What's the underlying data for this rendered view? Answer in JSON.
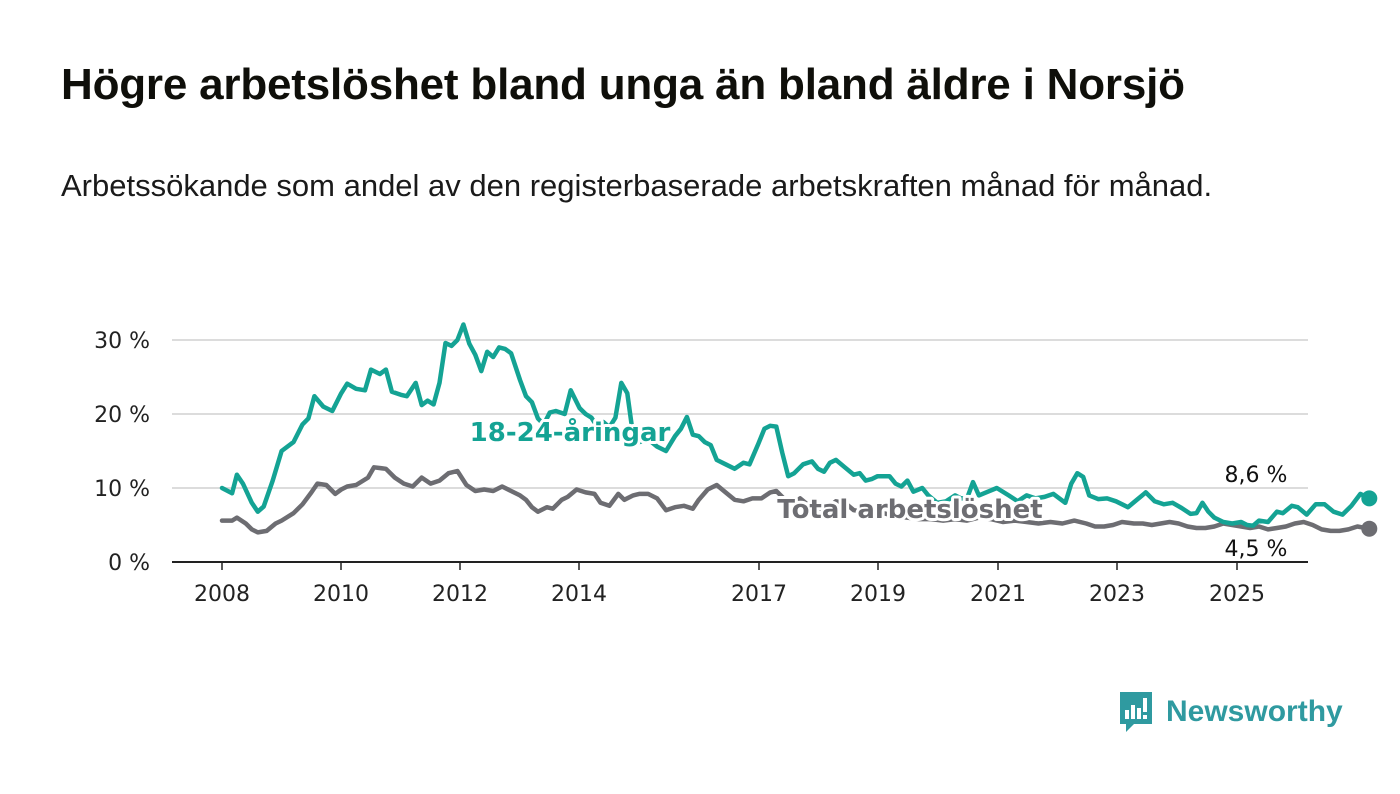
{
  "title": "Högre arbetslöshet bland unga än bland äldre i Norsjö",
  "subtitle": "Arbetssökande som andel av den registerbaserade arbetskraften månad för månad.",
  "brand": {
    "name": "Newsworthy",
    "color": "#2f9aa0"
  },
  "chart_data": {
    "type": "line",
    "title": "",
    "xlabel": "",
    "ylabel": "",
    "ylim": [
      0,
      30
    ],
    "xlim": [
      2008.0,
      2026.25
    ],
    "grid": true,
    "y_ticks": [
      {
        "value": 0,
        "label": "0 %"
      },
      {
        "value": 10,
        "label": "10 %"
      },
      {
        "value": 20,
        "label": "20 %"
      },
      {
        "value": 30,
        "label": "30 %"
      }
    ],
    "x_ticks": [
      {
        "value": 2008,
        "label": "2008"
      },
      {
        "value": 2010,
        "label": "2010"
      },
      {
        "value": 2012,
        "label": "2012"
      },
      {
        "value": 2014,
        "label": "2014"
      },
      {
        "value": 2017,
        "label": "2017"
      },
      {
        "value": 2019,
        "label": "2019"
      },
      {
        "value": 2021,
        "label": "2021"
      },
      {
        "value": 2023,
        "label": "2023"
      },
      {
        "value": 2025,
        "label": "2025"
      }
    ],
    "series": [
      {
        "name": "18-24-åringar",
        "color": "#14a394",
        "end_label": "8,6 %",
        "points": [
          [
            2008.0,
            10.0
          ],
          [
            2008.17,
            9.3
          ],
          [
            2008.25,
            11.8
          ],
          [
            2008.35,
            10.6
          ],
          [
            2008.5,
            8.0
          ],
          [
            2008.6,
            6.8
          ],
          [
            2008.7,
            7.5
          ],
          [
            2008.85,
            11.0
          ],
          [
            2009.0,
            15.0
          ],
          [
            2009.2,
            16.2
          ],
          [
            2009.35,
            18.6
          ],
          [
            2009.45,
            19.4
          ],
          [
            2009.55,
            22.4
          ],
          [
            2009.7,
            21.0
          ],
          [
            2009.85,
            20.4
          ],
          [
            2010.0,
            22.8
          ],
          [
            2010.1,
            24.1
          ],
          [
            2010.25,
            23.4
          ],
          [
            2010.4,
            23.2
          ],
          [
            2010.5,
            26.0
          ],
          [
            2010.65,
            25.4
          ],
          [
            2010.75,
            26.0
          ],
          [
            2010.85,
            23.0
          ],
          [
            2011.0,
            22.6
          ],
          [
            2011.1,
            22.4
          ],
          [
            2011.25,
            24.2
          ],
          [
            2011.35,
            21.2
          ],
          [
            2011.45,
            21.8
          ],
          [
            2011.55,
            21.3
          ],
          [
            2011.65,
            24.2
          ],
          [
            2011.75,
            29.6
          ],
          [
            2011.85,
            29.2
          ],
          [
            2011.95,
            30.0
          ],
          [
            2012.05,
            32.1
          ],
          [
            2012.15,
            29.5
          ],
          [
            2012.25,
            28.0
          ],
          [
            2012.35,
            25.8
          ],
          [
            2012.45,
            28.4
          ],
          [
            2012.55,
            27.7
          ],
          [
            2012.65,
            29.0
          ],
          [
            2012.75,
            28.8
          ],
          [
            2012.85,
            28.2
          ],
          [
            2013.0,
            24.6
          ],
          [
            2013.1,
            22.4
          ],
          [
            2013.2,
            21.6
          ],
          [
            2013.3,
            19.4
          ],
          [
            2013.4,
            18.6
          ],
          [
            2013.5,
            20.2
          ],
          [
            2013.6,
            20.4
          ],
          [
            2013.75,
            20.0
          ],
          [
            2013.85,
            23.2
          ],
          [
            2014.0,
            20.8
          ],
          [
            2014.1,
            20.0
          ],
          [
            2014.2,
            19.5
          ],
          [
            2014.3,
            18.2
          ],
          [
            2014.4,
            18.9
          ],
          [
            2014.5,
            18.2
          ],
          [
            2014.6,
            19.5
          ],
          [
            2014.7,
            24.2
          ],
          [
            2014.8,
            22.8
          ],
          [
            2014.9,
            17.0
          ],
          [
            2015.0,
            16.2
          ],
          [
            2015.15,
            16.6
          ],
          [
            2015.3,
            15.6
          ],
          [
            2015.45,
            15.0
          ],
          [
            2015.6,
            17.0
          ],
          [
            2015.7,
            18.0
          ],
          [
            2015.8,
            19.6
          ],
          [
            2015.9,
            17.2
          ],
          [
            2016.0,
            17.0
          ],
          [
            2016.1,
            16.2
          ],
          [
            2016.2,
            15.8
          ],
          [
            2016.3,
            13.8
          ],
          [
            2016.45,
            13.2
          ],
          [
            2016.6,
            12.6
          ],
          [
            2016.75,
            13.4
          ],
          [
            2016.85,
            13.2
          ],
          [
            2017.0,
            16.0
          ],
          [
            2017.1,
            18.0
          ],
          [
            2017.2,
            18.4
          ],
          [
            2017.3,
            18.3
          ],
          [
            2017.4,
            14.8
          ],
          [
            2017.5,
            11.6
          ],
          [
            2017.6,
            12.0
          ],
          [
            2017.75,
            13.2
          ],
          [
            2017.9,
            13.6
          ],
          [
            2018.0,
            12.6
          ],
          [
            2018.1,
            12.2
          ],
          [
            2018.2,
            13.4
          ],
          [
            2018.3,
            13.8
          ],
          [
            2018.45,
            12.8
          ],
          [
            2018.6,
            11.8
          ],
          [
            2018.7,
            12.0
          ],
          [
            2018.8,
            11.0
          ],
          [
            2018.9,
            11.2
          ],
          [
            2019.0,
            11.6
          ],
          [
            2019.2,
            11.6
          ],
          [
            2019.3,
            10.6
          ],
          [
            2019.4,
            10.2
          ],
          [
            2019.5,
            11.0
          ],
          [
            2019.6,
            9.5
          ],
          [
            2019.75,
            10.0
          ],
          [
            2019.85,
            9.0
          ],
          [
            2020.0,
            8.0
          ],
          [
            2020.15,
            8.2
          ],
          [
            2020.3,
            9.0
          ],
          [
            2020.4,
            8.6
          ],
          [
            2020.5,
            8.6
          ],
          [
            2020.6,
            10.8
          ],
          [
            2020.7,
            9.0
          ],
          [
            2020.85,
            9.5
          ],
          [
            2021.0,
            10.0
          ],
          [
            2021.2,
            9.0
          ],
          [
            2021.35,
            8.2
          ],
          [
            2021.5,
            9.0
          ],
          [
            2021.65,
            8.6
          ],
          [
            2021.8,
            8.8
          ],
          [
            2021.95,
            9.2
          ],
          [
            2022.05,
            8.6
          ],
          [
            2022.15,
            8.0
          ],
          [
            2022.25,
            10.6
          ],
          [
            2022.35,
            12.0
          ],
          [
            2022.45,
            11.5
          ],
          [
            2022.55,
            9.0
          ],
          [
            2022.7,
            8.5
          ],
          [
            2022.85,
            8.6
          ],
          [
            2023.0,
            8.2
          ],
          [
            2023.2,
            7.4
          ],
          [
            2023.35,
            8.4
          ],
          [
            2023.5,
            9.4
          ],
          [
            2023.65,
            8.2
          ],
          [
            2023.8,
            7.8
          ],
          [
            2023.95,
            8.0
          ],
          [
            2024.1,
            7.3
          ],
          [
            2024.25,
            6.5
          ],
          [
            2024.35,
            6.6
          ],
          [
            2024.45,
            8.0
          ],
          [
            2024.55,
            6.8
          ],
          [
            2024.65,
            6.0
          ],
          [
            2024.8,
            5.4
          ],
          [
            2024.95,
            5.2
          ],
          [
            2025.1,
            5.4
          ],
          [
            2025.2,
            5.0
          ],
          [
            2025.3,
            4.9
          ],
          [
            2025.4,
            5.6
          ],
          [
            2025.55,
            5.4
          ],
          [
            2025.7,
            6.8
          ],
          [
            2025.8,
            6.6
          ],
          [
            2025.95,
            7.6
          ],
          [
            2026.05,
            7.4
          ],
          [
            2026.2,
            6.4
          ],
          [
            2026.35,
            7.8
          ],
          [
            2026.5,
            7.8
          ],
          [
            2026.65,
            6.8
          ],
          [
            2026.8,
            6.4
          ],
          [
            2026.95,
            7.6
          ],
          [
            2027.1,
            9.2
          ],
          [
            2027.25,
            8.6
          ]
        ]
      },
      {
        "name": "Total arbetslöshet",
        "color": "#6d6d72",
        "end_label": "4,5 %",
        "points": [
          [
            2008.0,
            5.6
          ],
          [
            2008.17,
            5.6
          ],
          [
            2008.25,
            6.0
          ],
          [
            2008.4,
            5.2
          ],
          [
            2008.5,
            4.4
          ],
          [
            2008.6,
            4.0
          ],
          [
            2008.75,
            4.2
          ],
          [
            2008.9,
            5.2
          ],
          [
            2009.0,
            5.6
          ],
          [
            2009.2,
            6.6
          ],
          [
            2009.35,
            7.8
          ],
          [
            2009.5,
            9.4
          ],
          [
            2009.6,
            10.6
          ],
          [
            2009.75,
            10.4
          ],
          [
            2009.9,
            9.2
          ],
          [
            2010.0,
            9.8
          ],
          [
            2010.1,
            10.2
          ],
          [
            2010.25,
            10.4
          ],
          [
            2010.45,
            11.4
          ],
          [
            2010.55,
            12.8
          ],
          [
            2010.75,
            12.6
          ],
          [
            2010.9,
            11.4
          ],
          [
            2011.05,
            10.6
          ],
          [
            2011.2,
            10.2
          ],
          [
            2011.35,
            11.4
          ],
          [
            2011.5,
            10.6
          ],
          [
            2011.65,
            11.0
          ],
          [
            2011.8,
            12.0
          ],
          [
            2011.95,
            12.3
          ],
          [
            2012.1,
            10.4
          ],
          [
            2012.25,
            9.6
          ],
          [
            2012.4,
            9.8
          ],
          [
            2012.55,
            9.6
          ],
          [
            2012.7,
            10.2
          ],
          [
            2012.85,
            9.6
          ],
          [
            2013.0,
            9.0
          ],
          [
            2013.1,
            8.4
          ],
          [
            2013.2,
            7.4
          ],
          [
            2013.3,
            6.8
          ],
          [
            2013.45,
            7.4
          ],
          [
            2013.55,
            7.2
          ],
          [
            2013.7,
            8.4
          ],
          [
            2013.8,
            8.8
          ],
          [
            2013.95,
            9.8
          ],
          [
            2014.1,
            9.4
          ],
          [
            2014.25,
            9.2
          ],
          [
            2014.35,
            8.0
          ],
          [
            2014.5,
            7.6
          ],
          [
            2014.65,
            9.2
          ],
          [
            2014.75,
            8.4
          ],
          [
            2014.9,
            9.0
          ],
          [
            2015.0,
            9.2
          ],
          [
            2015.15,
            9.2
          ],
          [
            2015.3,
            8.6
          ],
          [
            2015.45,
            7.0
          ],
          [
            2015.6,
            7.4
          ],
          [
            2015.75,
            7.6
          ],
          [
            2015.9,
            7.2
          ],
          [
            2016.0,
            8.4
          ],
          [
            2016.15,
            9.8
          ],
          [
            2016.3,
            10.4
          ],
          [
            2016.45,
            9.4
          ],
          [
            2016.6,
            8.4
          ],
          [
            2016.75,
            8.2
          ],
          [
            2016.9,
            8.6
          ],
          [
            2017.05,
            8.6
          ],
          [
            2017.2,
            9.4
          ],
          [
            2017.3,
            9.6
          ],
          [
            2017.45,
            8.4
          ],
          [
            2017.55,
            7.4
          ],
          [
            2017.7,
            8.6
          ],
          [
            2017.85,
            7.6
          ],
          [
            2018.0,
            7.2
          ],
          [
            2018.15,
            7.2
          ],
          [
            2018.3,
            8.2
          ],
          [
            2018.45,
            8.0
          ],
          [
            2018.6,
            7.0
          ],
          [
            2018.75,
            6.8
          ],
          [
            2018.9,
            6.6
          ],
          [
            2019.1,
            6.6
          ],
          [
            2019.3,
            6.2
          ],
          [
            2019.5,
            6.0
          ],
          [
            2019.7,
            5.8
          ],
          [
            2019.9,
            5.8
          ],
          [
            2020.1,
            5.6
          ],
          [
            2020.3,
            5.8
          ],
          [
            2020.5,
            5.6
          ],
          [
            2020.7,
            6.0
          ],
          [
            2020.9,
            5.8
          ],
          [
            2021.1,
            5.4
          ],
          [
            2021.3,
            5.6
          ],
          [
            2021.5,
            5.4
          ],
          [
            2021.7,
            5.2
          ],
          [
            2021.9,
            5.4
          ],
          [
            2022.1,
            5.2
          ],
          [
            2022.3,
            5.6
          ],
          [
            2022.5,
            5.2
          ],
          [
            2022.65,
            4.8
          ],
          [
            2022.8,
            4.8
          ],
          [
            2022.95,
            5.0
          ],
          [
            2023.1,
            5.4
          ],
          [
            2023.3,
            5.2
          ],
          [
            2023.45,
            5.2
          ],
          [
            2023.6,
            5.0
          ],
          [
            2023.75,
            5.2
          ],
          [
            2023.9,
            5.4
          ],
          [
            2024.05,
            5.2
          ],
          [
            2024.2,
            4.8
          ],
          [
            2024.35,
            4.6
          ],
          [
            2024.5,
            4.6
          ],
          [
            2024.65,
            4.8
          ],
          [
            2024.8,
            5.2
          ],
          [
            2024.95,
            5.0
          ],
          [
            2025.1,
            4.8
          ],
          [
            2025.25,
            4.6
          ],
          [
            2025.4,
            4.8
          ],
          [
            2025.55,
            4.4
          ],
          [
            2025.7,
            4.6
          ],
          [
            2025.85,
            4.8
          ],
          [
            2026.0,
            5.2
          ],
          [
            2026.15,
            5.4
          ],
          [
            2026.3,
            5.0
          ],
          [
            2026.45,
            4.4
          ],
          [
            2026.6,
            4.2
          ],
          [
            2026.75,
            4.2
          ],
          [
            2026.9,
            4.4
          ],
          [
            2027.05,
            4.8
          ],
          [
            2027.25,
            4.5
          ]
        ]
      }
    ]
  }
}
